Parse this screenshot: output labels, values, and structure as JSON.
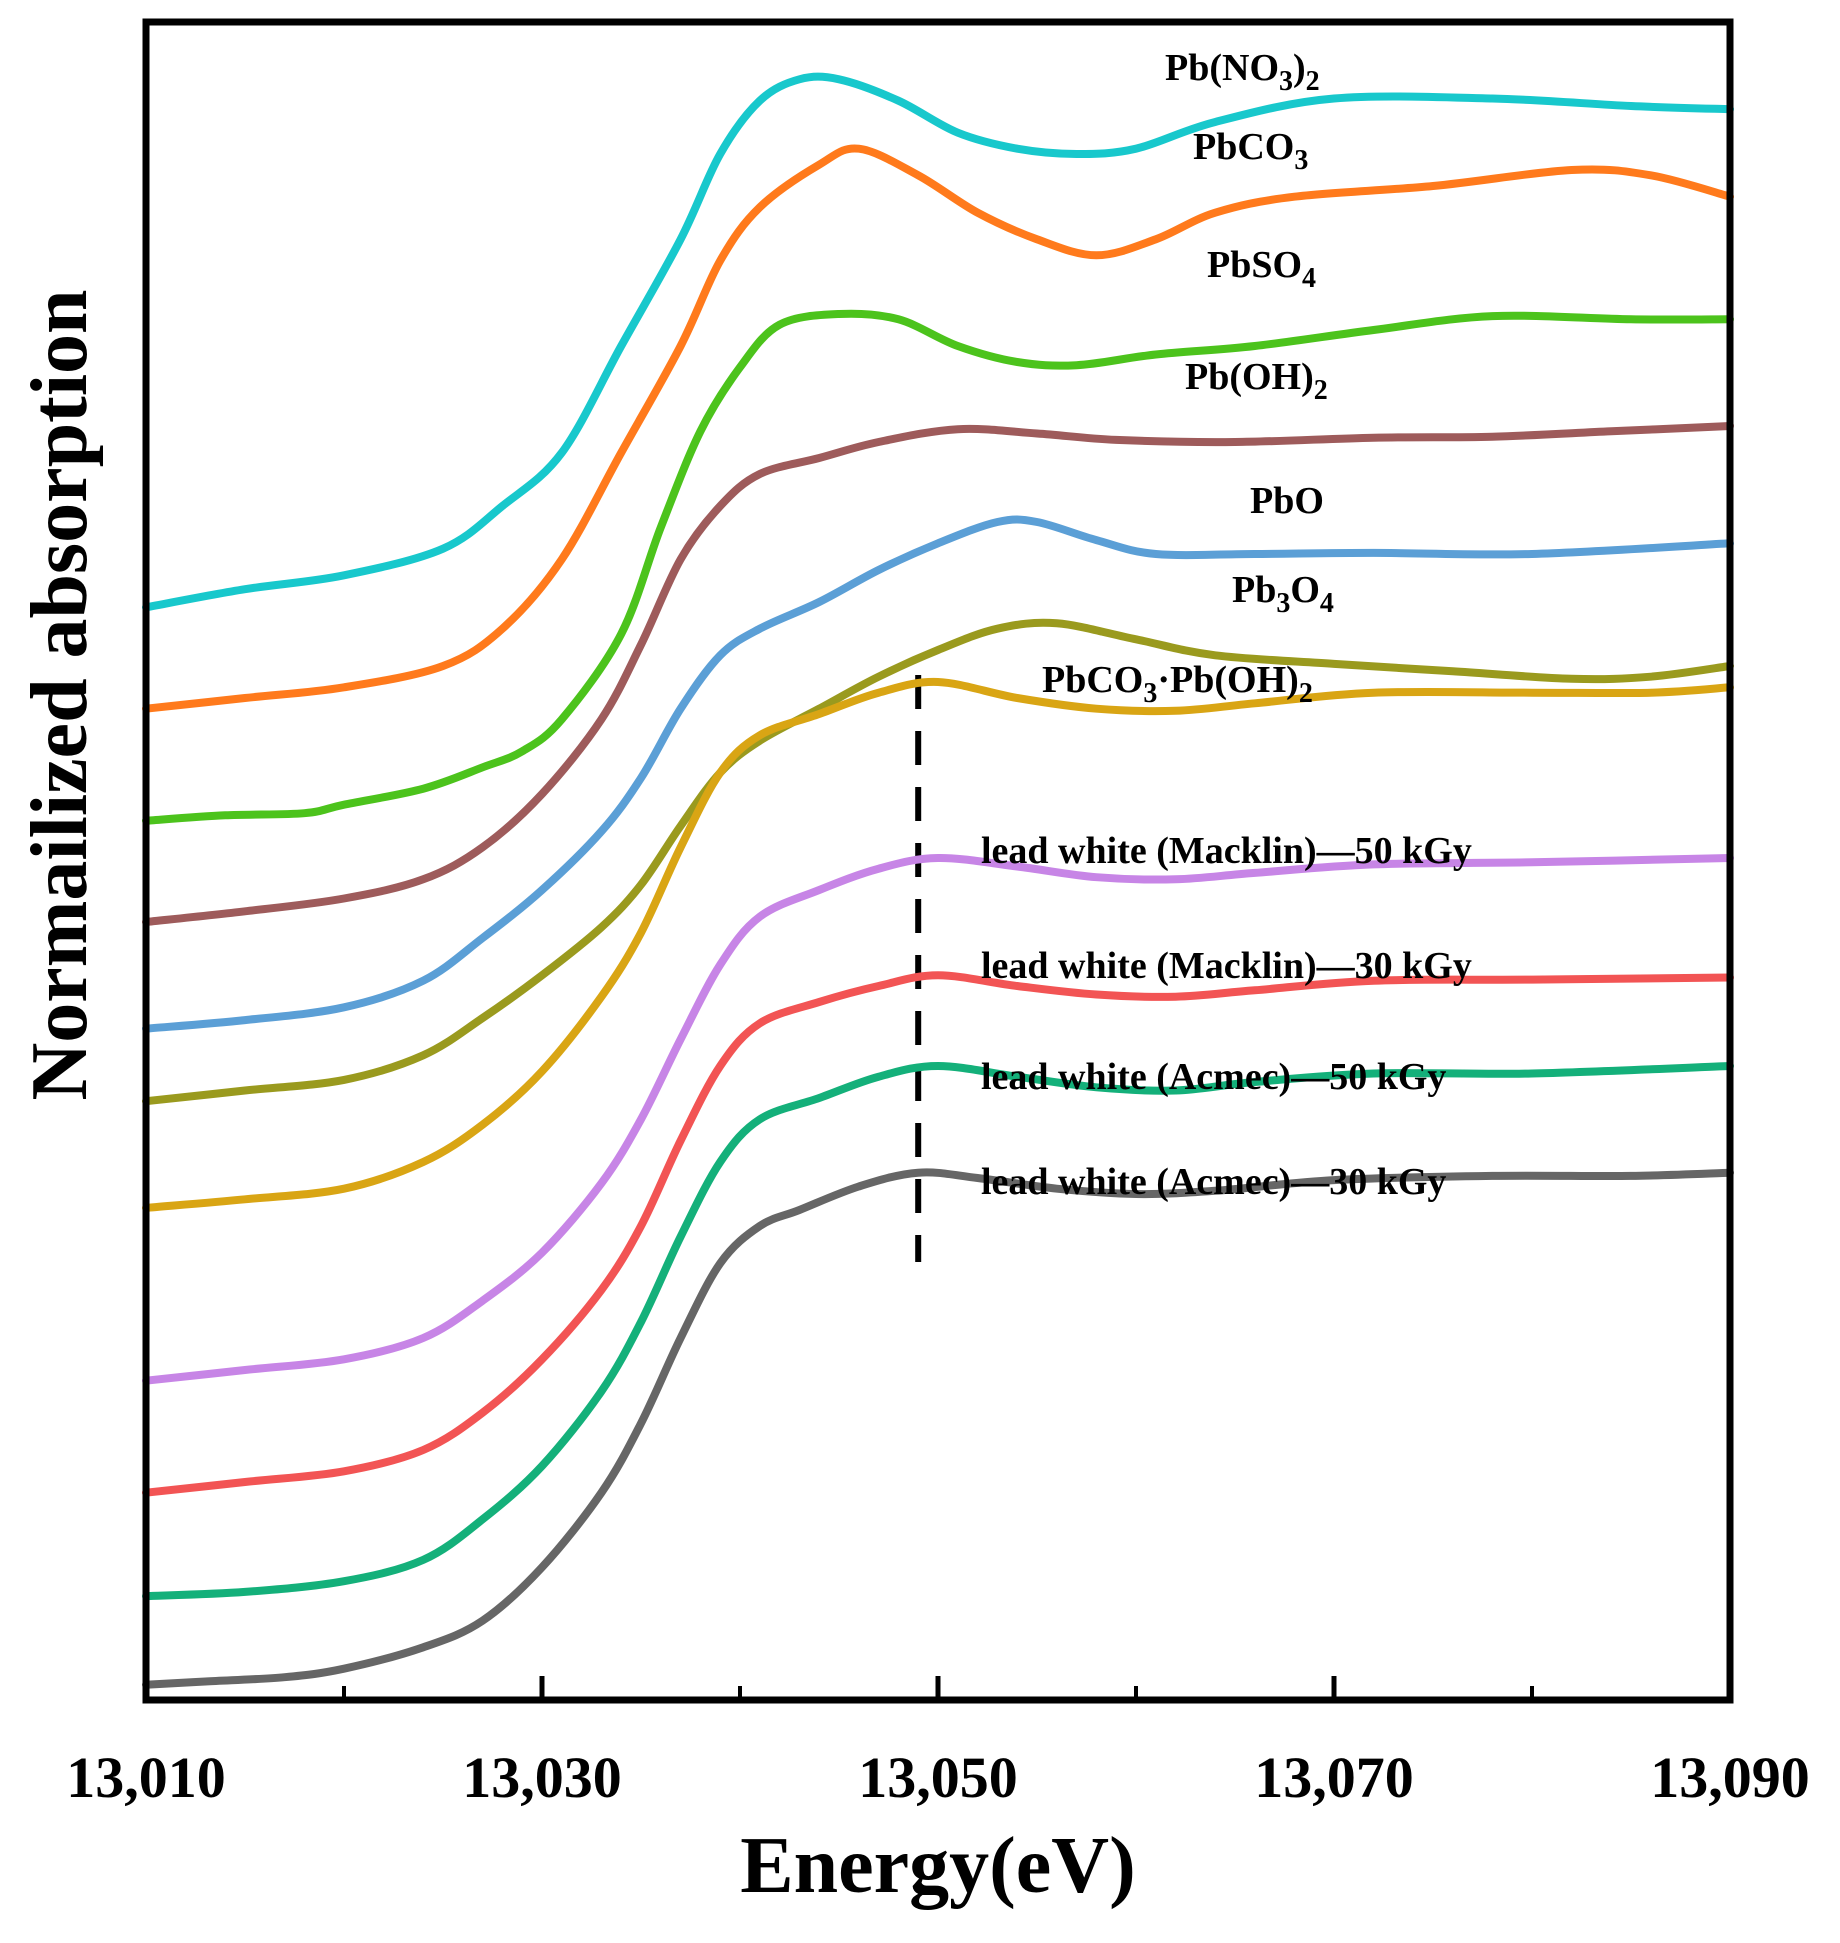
{
  "chart_data": {
    "type": "line",
    "title": "",
    "xlabel": "Energy(eV)",
    "ylabel": "Normailized absorption",
    "xlim": [
      13010,
      13090
    ],
    "ylim": [
      0,
      15
    ],
    "x_ticks": [
      13010,
      13030,
      13050,
      13070,
      13090
    ],
    "x_tick_labels": [
      "13,010",
      "13,030",
      "13,050",
      "13,070",
      "13,090"
    ],
    "yticks_shown": false,
    "grid": false,
    "legend": "inline labels next to each curve",
    "reference_line": {
      "x": 13049,
      "style": "dashed",
      "color": "#000000"
    },
    "series": [
      {
        "name": "Pb(NO3)2",
        "label_main": "Pb(NO",
        "label_sub1": "3",
        "label_mid": ")",
        "label_sub2": "2",
        "color": "#18c8cc",
        "points": [
          [
            13010,
            10.15
          ],
          [
            13015,
            10.32
          ],
          [
            13020,
            10.45
          ],
          [
            13025,
            10.7
          ],
          [
            13028,
            11.1
          ],
          [
            13031,
            11.6
          ],
          [
            13034,
            12.6
          ],
          [
            13037,
            13.6
          ],
          [
            13039,
            14.4
          ],
          [
            13041,
            14.9
          ],
          [
            13043,
            15.1
          ],
          [
            13045,
            15.1
          ],
          [
            13048,
            14.9
          ],
          [
            13051,
            14.6
          ],
          [
            13054,
            14.45
          ],
          [
            13057,
            14.4
          ],
          [
            13060,
            14.45
          ],
          [
            13064,
            14.7
          ],
          [
            13070,
            14.92
          ],
          [
            13078,
            14.92
          ],
          [
            13085,
            14.85
          ],
          [
            13090,
            14.82
          ]
        ]
      },
      {
        "name": "PbCO3",
        "label_main": "PbCO",
        "label_sub1": "3",
        "label_mid": "",
        "label_sub2": "",
        "color": "#ff7a1c",
        "points": [
          [
            13010,
            9.2
          ],
          [
            13015,
            9.3
          ],
          [
            13020,
            9.4
          ],
          [
            13025,
            9.6
          ],
          [
            13028,
            9.95
          ],
          [
            13031,
            10.6
          ],
          [
            13034,
            11.6
          ],
          [
            13037,
            12.6
          ],
          [
            13039,
            13.4
          ],
          [
            13041,
            13.9
          ],
          [
            13044,
            14.3
          ],
          [
            13046,
            14.45
          ],
          [
            13049,
            14.2
          ],
          [
            13052,
            13.85
          ],
          [
            13055,
            13.6
          ],
          [
            13058,
            13.45
          ],
          [
            13061,
            13.6
          ],
          [
            13064,
            13.85
          ],
          [
            13068,
            14.0
          ],
          [
            13075,
            14.1
          ],
          [
            13082,
            14.25
          ],
          [
            13086,
            14.2
          ],
          [
            13090,
            14.0
          ]
        ]
      },
      {
        "name": "PbSO4",
        "label_main": "PbSO",
        "label_sub1": "4",
        "label_mid": "",
        "label_sub2": "",
        "color": "#4cc31c",
        "points": [
          [
            13010,
            8.15
          ],
          [
            13014,
            8.2
          ],
          [
            13018,
            8.22
          ],
          [
            13020,
            8.3
          ],
          [
            13024,
            8.45
          ],
          [
            13027,
            8.65
          ],
          [
            13029,
            8.8
          ],
          [
            13031,
            9.1
          ],
          [
            13034,
            9.9
          ],
          [
            13036,
            10.9
          ],
          [
            13038,
            11.8
          ],
          [
            13040,
            12.4
          ],
          [
            13042,
            12.8
          ],
          [
            13045,
            12.9
          ],
          [
            13048,
            12.85
          ],
          [
            13051,
            12.6
          ],
          [
            13054,
            12.45
          ],
          [
            13057,
            12.42
          ],
          [
            13061,
            12.52
          ],
          [
            13066,
            12.6
          ],
          [
            13072,
            12.75
          ],
          [
            13078,
            12.88
          ],
          [
            13085,
            12.85
          ],
          [
            13090,
            12.85
          ]
        ]
      },
      {
        "name": "Pb(OH)2",
        "label_main": "Pb(OH)",
        "label_sub1": "2",
        "label_mid": "",
        "label_sub2": "",
        "color": "#9e5b5b",
        "points": [
          [
            13010,
            7.2
          ],
          [
            13015,
            7.3
          ],
          [
            13020,
            7.42
          ],
          [
            13024,
            7.6
          ],
          [
            13027,
            7.9
          ],
          [
            13030,
            8.4
          ],
          [
            13033,
            9.1
          ],
          [
            13035,
            9.8
          ],
          [
            13037,
            10.6
          ],
          [
            13039,
            11.1
          ],
          [
            13041,
            11.4
          ],
          [
            13044,
            11.55
          ],
          [
            13047,
            11.7
          ],
          [
            13051,
            11.82
          ],
          [
            13055,
            11.78
          ],
          [
            13059,
            11.72
          ],
          [
            13065,
            11.7
          ],
          [
            13072,
            11.74
          ],
          [
            13078,
            11.75
          ],
          [
            13084,
            11.8
          ],
          [
            13090,
            11.85
          ]
        ]
      },
      {
        "name": "PbO",
        "label_main": "PbO",
        "label_sub1": "",
        "label_mid": "",
        "label_sub2": "",
        "color": "#5b9fd6",
        "points": [
          [
            13010,
            6.2
          ],
          [
            13015,
            6.28
          ],
          [
            13020,
            6.4
          ],
          [
            13024,
            6.65
          ],
          [
            13027,
            7.05
          ],
          [
            13030,
            7.5
          ],
          [
            13033,
            8.05
          ],
          [
            13035,
            8.55
          ],
          [
            13037,
            9.2
          ],
          [
            13039,
            9.7
          ],
          [
            13041,
            9.95
          ],
          [
            13044,
            10.2
          ],
          [
            13047,
            10.5
          ],
          [
            13050,
            10.75
          ],
          [
            13053,
            10.95
          ],
          [
            13055,
            10.95
          ],
          [
            13058,
            10.78
          ],
          [
            13061,
            10.65
          ],
          [
            13066,
            10.65
          ],
          [
            13072,
            10.66
          ],
          [
            13080,
            10.65
          ],
          [
            13090,
            10.75
          ]
        ]
      },
      {
        "name": "Pb3O4",
        "label_main": "Pb",
        "label_sub1": "3",
        "label_mid": "O",
        "label_sub2": "4",
        "color": "#9a9a1e",
        "points": [
          [
            13010,
            5.52
          ],
          [
            13015,
            5.62
          ],
          [
            13020,
            5.72
          ],
          [
            13024,
            5.95
          ],
          [
            13027,
            6.3
          ],
          [
            13030,
            6.7
          ],
          [
            13033,
            7.15
          ],
          [
            13035,
            7.55
          ],
          [
            13037,
            8.1
          ],
          [
            13039,
            8.6
          ],
          [
            13041,
            8.9
          ],
          [
            13044,
            9.2
          ],
          [
            13047,
            9.5
          ],
          [
            13050,
            9.75
          ],
          [
            13053,
            9.95
          ],
          [
            13056,
            10.0
          ],
          [
            13060,
            9.85
          ],
          [
            13064,
            9.7
          ],
          [
            13070,
            9.62
          ],
          [
            13076,
            9.55
          ],
          [
            13082,
            9.48
          ],
          [
            13086,
            9.5
          ],
          [
            13090,
            9.6
          ]
        ]
      },
      {
        "name": "PbCO3·Pb(OH)2",
        "label_main": "PbCO",
        "label_sub1": "3",
        "label_mid": "·Pb(OH)",
        "label_sub2": "2",
        "color": "#d9a514",
        "points": [
          [
            13010,
            4.52
          ],
          [
            13015,
            4.6
          ],
          [
            13020,
            4.7
          ],
          [
            13024,
            4.95
          ],
          [
            13027,
            5.3
          ],
          [
            13030,
            5.8
          ],
          [
            13033,
            6.5
          ],
          [
            13035,
            7.1
          ],
          [
            13037,
            7.9
          ],
          [
            13039,
            8.6
          ],
          [
            13041,
            8.95
          ],
          [
            13044,
            9.15
          ],
          [
            13047,
            9.35
          ],
          [
            13050,
            9.45
          ],
          [
            13054,
            9.3
          ],
          [
            13058,
            9.2
          ],
          [
            13062,
            9.18
          ],
          [
            13066,
            9.25
          ],
          [
            13072,
            9.35
          ],
          [
            13080,
            9.35
          ],
          [
            13086,
            9.35
          ],
          [
            13090,
            9.4
          ]
        ]
      },
      {
        "name": "lead white (Macklin)—50 kGy",
        "label_main": "lead white (Macklin)—50 kGy",
        "label_sub1": "",
        "label_mid": "",
        "label_sub2": "",
        "color": "#c785e6",
        "points": [
          [
            13010,
            2.9
          ],
          [
            13015,
            3.0
          ],
          [
            13020,
            3.1
          ],
          [
            13024,
            3.3
          ],
          [
            13027,
            3.65
          ],
          [
            13030,
            4.1
          ],
          [
            13033,
            4.75
          ],
          [
            13035,
            5.35
          ],
          [
            13037,
            6.1
          ],
          [
            13039,
            6.8
          ],
          [
            13041,
            7.25
          ],
          [
            13044,
            7.5
          ],
          [
            13047,
            7.7
          ],
          [
            13050,
            7.8
          ],
          [
            13054,
            7.72
          ],
          [
            13058,
            7.62
          ],
          [
            13062,
            7.6
          ],
          [
            13066,
            7.66
          ],
          [
            13072,
            7.74
          ],
          [
            13080,
            7.76
          ],
          [
            13090,
            7.8
          ]
        ]
      },
      {
        "name": "lead white (Macklin)—30 kGy",
        "label_main": "lead white (Macklin)—30 kGy",
        "label_sub1": "",
        "label_mid": "",
        "label_sub2": "",
        "color": "#f25454",
        "points": [
          [
            13010,
            1.85
          ],
          [
            13015,
            1.95
          ],
          [
            13020,
            2.05
          ],
          [
            13024,
            2.25
          ],
          [
            13027,
            2.6
          ],
          [
            13030,
            3.1
          ],
          [
            13033,
            3.75
          ],
          [
            13035,
            4.35
          ],
          [
            13037,
            5.15
          ],
          [
            13039,
            5.85
          ],
          [
            13041,
            6.25
          ],
          [
            13044,
            6.45
          ],
          [
            13047,
            6.6
          ],
          [
            13050,
            6.7
          ],
          [
            13054,
            6.6
          ],
          [
            13058,
            6.52
          ],
          [
            13062,
            6.5
          ],
          [
            13066,
            6.56
          ],
          [
            13072,
            6.65
          ],
          [
            13080,
            6.66
          ],
          [
            13090,
            6.68
          ]
        ]
      },
      {
        "name": "lead white (Acmec)—50 kGy",
        "label_main": "lead white (Acmec)—50 kGy",
        "label_sub1": "",
        "label_mid": "",
        "label_sub2": "",
        "color": "#14b07a",
        "points": [
          [
            13010,
            0.88
          ],
          [
            13015,
            0.92
          ],
          [
            13020,
            1.02
          ],
          [
            13024,
            1.22
          ],
          [
            13027,
            1.6
          ],
          [
            13030,
            2.1
          ],
          [
            13033,
            2.8
          ],
          [
            13035,
            3.45
          ],
          [
            13037,
            4.25
          ],
          [
            13039,
            4.95
          ],
          [
            13041,
            5.35
          ],
          [
            13044,
            5.55
          ],
          [
            13047,
            5.75
          ],
          [
            13050,
            5.85
          ],
          [
            13054,
            5.75
          ],
          [
            13058,
            5.65
          ],
          [
            13062,
            5.62
          ],
          [
            13066,
            5.7
          ],
          [
            13072,
            5.78
          ],
          [
            13080,
            5.78
          ],
          [
            13090,
            5.85
          ]
        ]
      },
      {
        "name": "lead white (Acmec)—30 kGy",
        "label_main": "lead white (Acmec)—30 kGy",
        "label_sub1": "",
        "label_mid": "",
        "label_sub2": "",
        "color": "#666666",
        "points": [
          [
            13010,
            0.05
          ],
          [
            13013,
            0.08
          ],
          [
            13017,
            0.12
          ],
          [
            13020,
            0.2
          ],
          [
            13024,
            0.4
          ],
          [
            13027,
            0.65
          ],
          [
            13030,
            1.15
          ],
          [
            13033,
            1.85
          ],
          [
            13035,
            2.5
          ],
          [
            13037,
            3.3
          ],
          [
            13039,
            4.0
          ],
          [
            13041,
            4.35
          ],
          [
            13043,
            4.5
          ],
          [
            13046,
            4.72
          ],
          [
            13049,
            4.85
          ],
          [
            13052,
            4.8
          ],
          [
            13056,
            4.7
          ],
          [
            13060,
            4.65
          ],
          [
            13064,
            4.68
          ],
          [
            13070,
            4.78
          ],
          [
            13078,
            4.82
          ],
          [
            13085,
            4.82
          ],
          [
            13090,
            4.85
          ]
        ]
      }
    ]
  }
}
